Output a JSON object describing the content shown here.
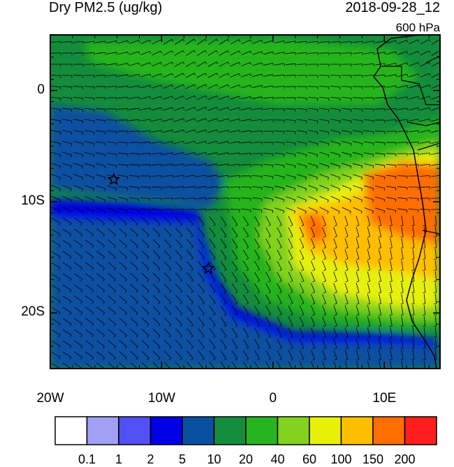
{
  "title": "Dry PM2.5 (ug/kg)",
  "date": "2018-09-28_12",
  "level": "600 hPa",
  "axes": {
    "x_ticks": [
      {
        "label": "20W",
        "lon": -20
      },
      {
        "label": "10W",
        "lon": -10
      },
      {
        "label": "0",
        "lon": 0
      },
      {
        "label": "10E",
        "lon": 10
      }
    ],
    "y_ticks": [
      {
        "label": "0",
        "lat": 0
      },
      {
        "label": "10S",
        "lat": -10
      },
      {
        "label": "20S",
        "lat": -20
      }
    ],
    "lon_range": [
      -20,
      15
    ],
    "lat_range": [
      -25,
      5
    ]
  },
  "colorbar": {
    "levels": [
      "0.1",
      "1",
      "2",
      "5",
      "10",
      "20",
      "40",
      "60",
      "100",
      "150",
      "200"
    ],
    "colors": [
      "#ffffff",
      "#a0a0f5",
      "#5050f5",
      "#0000e6",
      "#0a50a0",
      "#148c3c",
      "#28b41e",
      "#82d21e",
      "#e6f00a",
      "#ffbe00",
      "#ff6e00",
      "#ff1e1e"
    ]
  },
  "markers": [
    {
      "name": "star-marker-1",
      "lon": -14.3,
      "lat": -8.0
    },
    {
      "name": "star-marker-2",
      "lon": -5.8,
      "lat": -16.0
    }
  ]
}
